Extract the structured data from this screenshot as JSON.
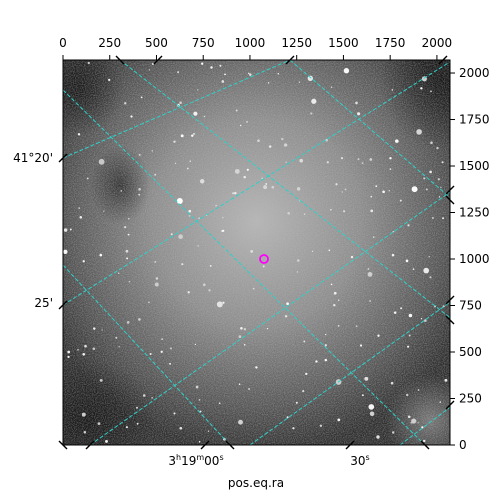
{
  "figure": {
    "xlabel": "pos.eq.ra",
    "top_ticks": [
      "0",
      "250",
      "500",
      "750",
      "1000",
      "1250",
      "1500",
      "1750",
      "2000"
    ],
    "right_ticks": [
      "2000",
      "1750",
      "1500",
      "1250",
      "1000",
      "750",
      "500",
      "250",
      "0"
    ],
    "ra_labels": [
      {
        "h": "3",
        "m": "19",
        "s": "00",
        "sup_h": "h",
        "sup_m": "m",
        "sup_s": "s"
      },
      {
        "s": "30",
        "sup_s": "s"
      }
    ],
    "dec_labels": [
      "41°20'",
      "25'"
    ],
    "colors": {
      "grid": "#2fd0c8",
      "marker": "#ff00ff",
      "axes": "#000000"
    },
    "marker": {
      "shape": "circle",
      "color_name": "magenta"
    }
  }
}
